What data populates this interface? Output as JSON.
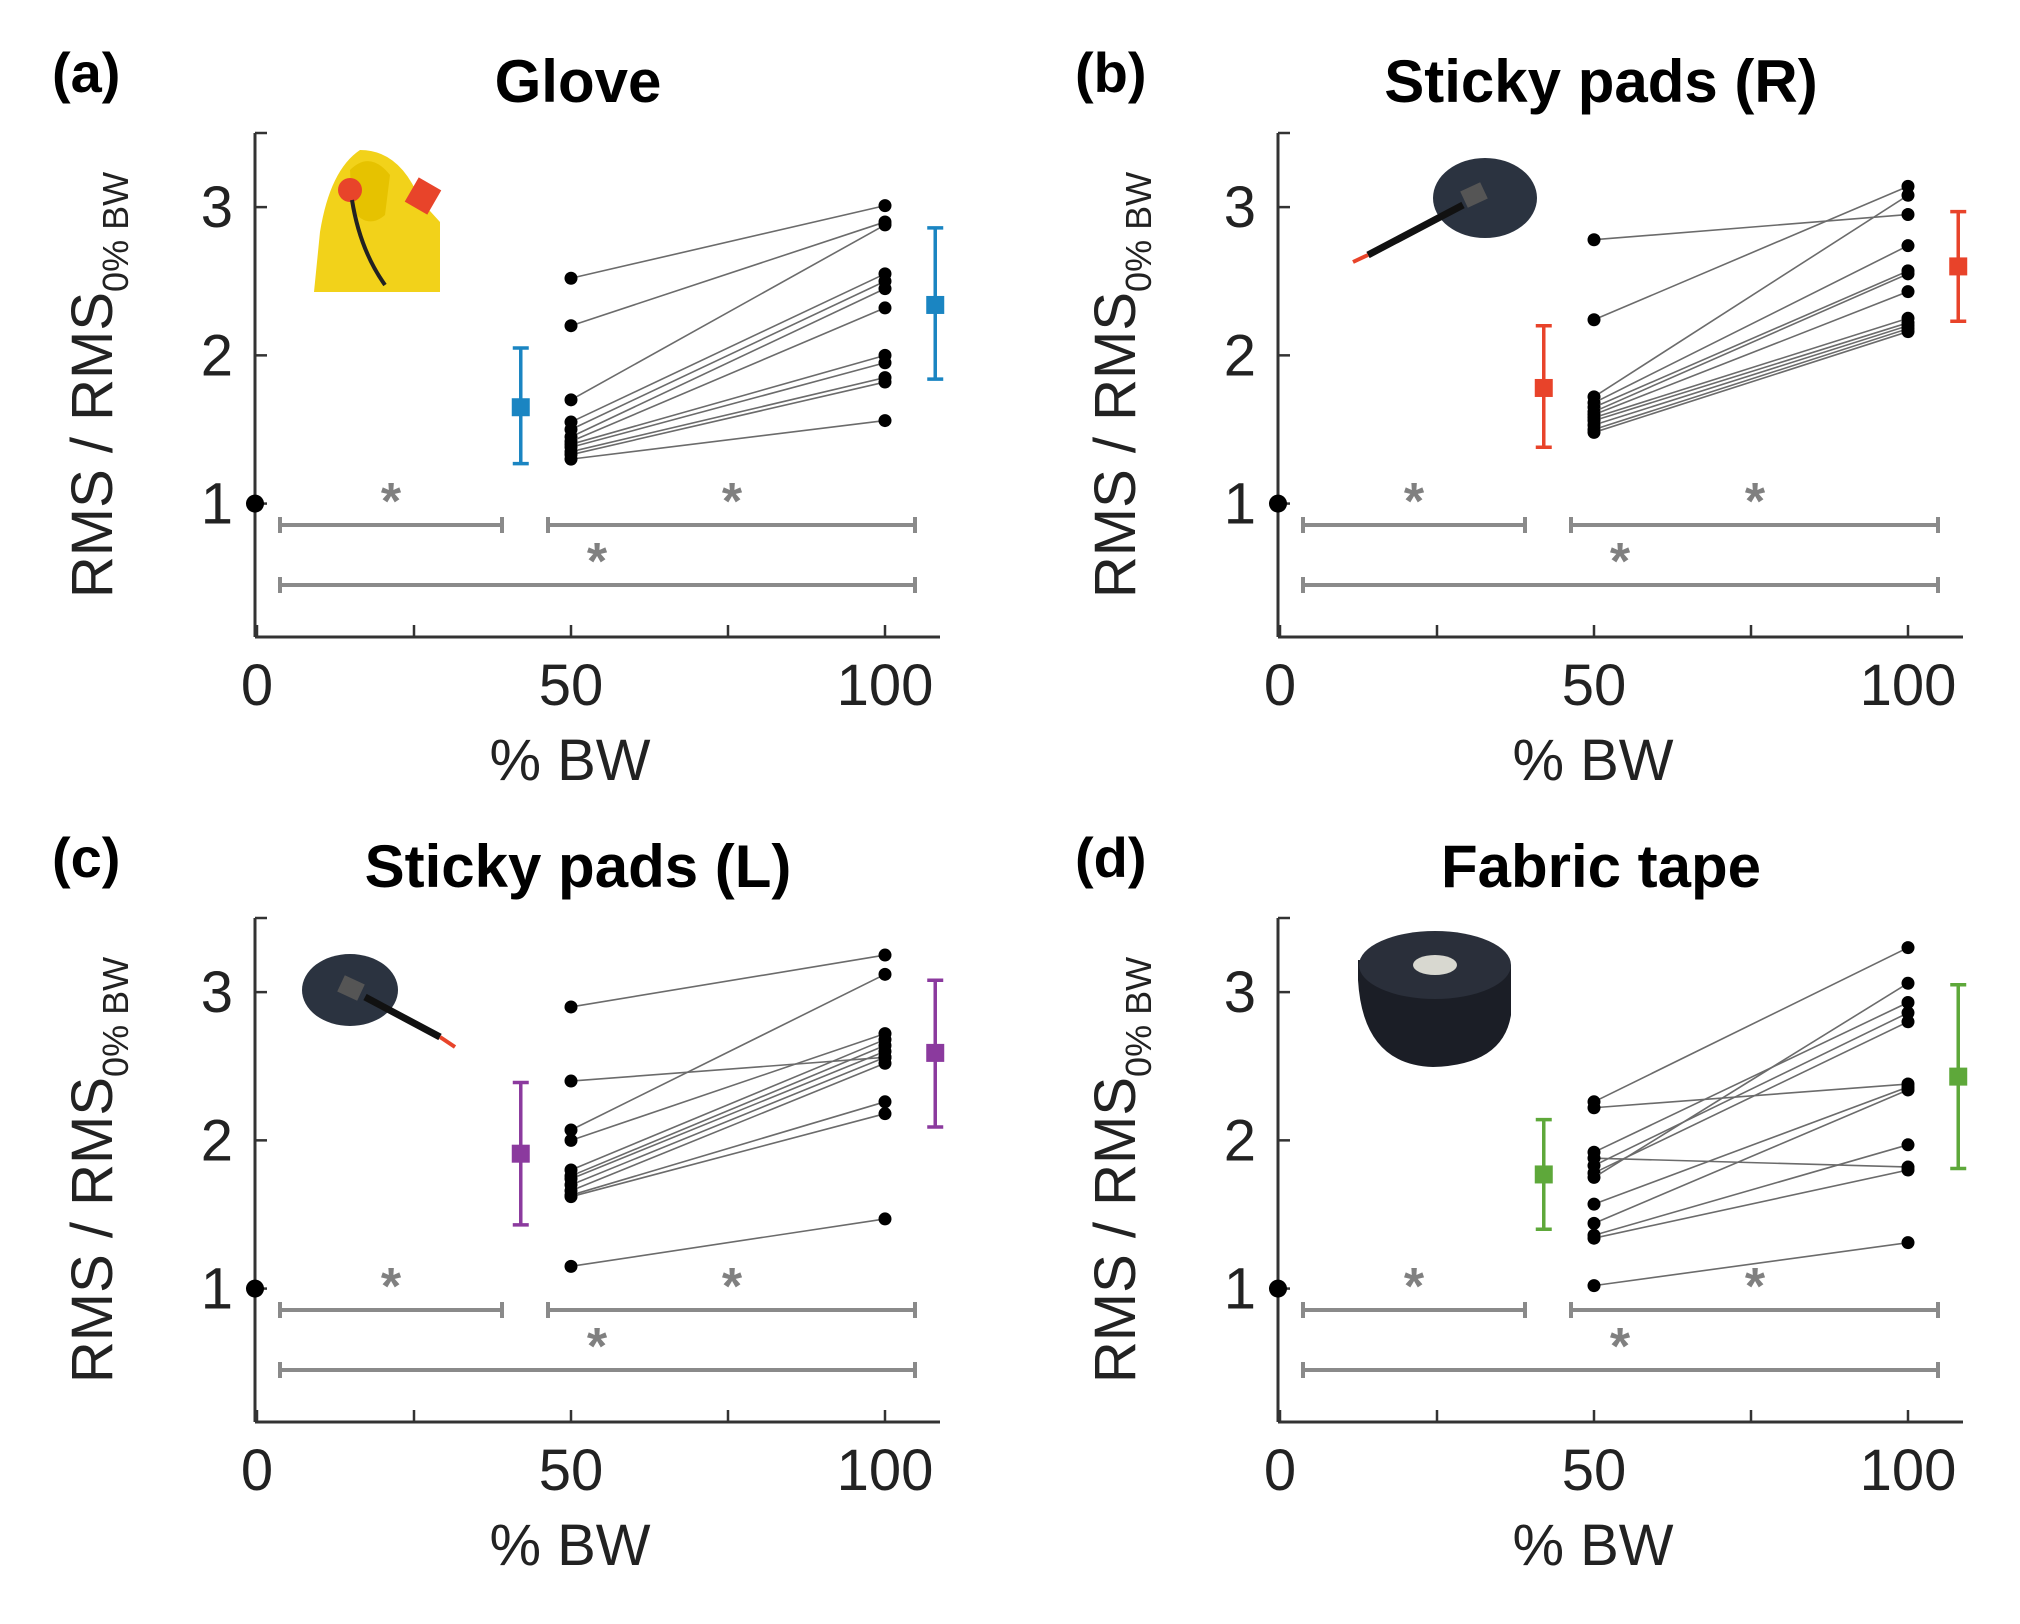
{
  "colors": {
    "glove": "#1a85c2",
    "sticky_r": "#e8432a",
    "sticky_l": "#8b3a9e",
    "fabric": "#5ea83a",
    "significance": "#8a8a8a"
  },
  "chart_data": [
    {
      "type": "line",
      "panel_label": "(a)",
      "title": "Glove",
      "xlabel": "% BW",
      "ylabel": "RMS / RMS",
      "ylabel_subscript": "0% BW",
      "x_ticks": [
        "0",
        "50",
        "100"
      ],
      "y_ticks": [
        "1",
        "2",
        "3"
      ],
      "xlim": [
        0,
        100
      ],
      "ylim": [
        0.1,
        3.5
      ],
      "icon": "glove-icon",
      "color_key": "glove",
      "baseline": {
        "x": 0,
        "y": 1
      },
      "subjects": [
        [
          2.52,
          3.01
        ],
        [
          2.2,
          2.9
        ],
        [
          1.7,
          2.88
        ],
        [
          1.55,
          2.55
        ],
        [
          1.5,
          2.5
        ],
        [
          1.45,
          2.45
        ],
        [
          1.42,
          2.32
        ],
        [
          1.4,
          2.0
        ],
        [
          1.38,
          1.95
        ],
        [
          1.35,
          1.85
        ],
        [
          1.33,
          1.82
        ],
        [
          1.3,
          1.56
        ]
      ],
      "summary": [
        {
          "x": 42,
          "mean": 1.65,
          "low": 1.27,
          "high": 2.05
        },
        {
          "x": 108,
          "mean": 2.34,
          "low": 1.84,
          "high": 2.86
        }
      ],
      "significance": [
        "*",
        "*",
        "*"
      ]
    },
    {
      "type": "line",
      "panel_label": "(b)",
      "title": "Sticky pads (R)",
      "xlabel": "% BW",
      "ylabel": "RMS / RMS",
      "ylabel_subscript": "0% BW",
      "x_ticks": [
        "0",
        "50",
        "100"
      ],
      "y_ticks": [
        "1",
        "2",
        "3"
      ],
      "xlim": [
        0,
        100
      ],
      "ylim": [
        0.1,
        3.5
      ],
      "icon": "electrode-icon",
      "color_key": "sticky_r",
      "baseline": {
        "x": 0,
        "y": 1
      },
      "subjects": [
        [
          2.78,
          2.95
        ],
        [
          2.24,
          3.14
        ],
        [
          1.72,
          3.08
        ],
        [
          1.68,
          2.74
        ],
        [
          1.65,
          2.57
        ],
        [
          1.62,
          2.55
        ],
        [
          1.6,
          2.43
        ],
        [
          1.58,
          2.25
        ],
        [
          1.56,
          2.22
        ],
        [
          1.53,
          2.2
        ],
        [
          1.5,
          2.18
        ],
        [
          1.48,
          2.16
        ]
      ],
      "summary": [
        {
          "x": 42,
          "mean": 1.78,
          "low": 1.38,
          "high": 2.2
        },
        {
          "x": 108,
          "mean": 2.6,
          "low": 2.23,
          "high": 2.97
        }
      ],
      "significance": [
        "*",
        "*",
        "*"
      ]
    },
    {
      "type": "line",
      "panel_label": "(c)",
      "title": "Sticky pads (L)",
      "xlabel": "% BW",
      "ylabel": "RMS / RMS",
      "ylabel_subscript": "0% BW",
      "x_ticks": [
        "0",
        "50",
        "100"
      ],
      "y_ticks": [
        "1",
        "2",
        "3"
      ],
      "xlim": [
        0,
        100
      ],
      "ylim": [
        0.1,
        3.5
      ],
      "icon": "electrode-icon",
      "color_key": "sticky_l",
      "baseline": {
        "x": 0,
        "y": 1
      },
      "subjects": [
        [
          2.9,
          3.25
        ],
        [
          2.4,
          2.56
        ],
        [
          2.07,
          3.12
        ],
        [
          2.0,
          2.72
        ],
        [
          1.8,
          2.68
        ],
        [
          1.76,
          2.64
        ],
        [
          1.74,
          2.6
        ],
        [
          1.7,
          2.56
        ],
        [
          1.66,
          2.52
        ],
        [
          1.63,
          2.26
        ],
        [
          1.62,
          2.18
        ],
        [
          1.15,
          1.47
        ]
      ],
      "summary": [
        {
          "x": 42,
          "mean": 1.91,
          "low": 1.43,
          "high": 2.39
        },
        {
          "x": 108,
          "mean": 2.59,
          "low": 2.09,
          "high": 3.08
        }
      ],
      "significance": [
        "*",
        "*",
        "*"
      ]
    },
    {
      "type": "line",
      "panel_label": "(d)",
      "title": "Fabric tape",
      "xlabel": "% BW",
      "ylabel": "RMS / RMS",
      "ylabel_subscript": "0% BW",
      "x_ticks": [
        "0",
        "50",
        "100"
      ],
      "y_ticks": [
        "1",
        "2",
        "3"
      ],
      "xlim": [
        0,
        100
      ],
      "ylim": [
        0.1,
        3.5
      ],
      "icon": "tape-roll-icon",
      "color_key": "fabric",
      "baseline": {
        "x": 0,
        "y": 1
      },
      "subjects": [
        [
          2.26,
          3.3
        ],
        [
          2.22,
          2.38
        ],
        [
          1.92,
          2.93
        ],
        [
          1.88,
          1.82
        ],
        [
          1.83,
          2.86
        ],
        [
          1.78,
          2.8
        ],
        [
          1.75,
          3.06
        ],
        [
          1.57,
          2.36
        ],
        [
          1.44,
          2.34
        ],
        [
          1.36,
          1.97
        ],
        [
          1.34,
          1.8
        ],
        [
          1.02,
          1.31
        ]
      ],
      "summary": [
        {
          "x": 42,
          "mean": 1.77,
          "low": 1.4,
          "high": 2.14
        },
        {
          "x": 108,
          "mean": 2.43,
          "low": 1.81,
          "high": 3.05
        }
      ],
      "significance": [
        "*",
        "*",
        "*"
      ]
    }
  ]
}
